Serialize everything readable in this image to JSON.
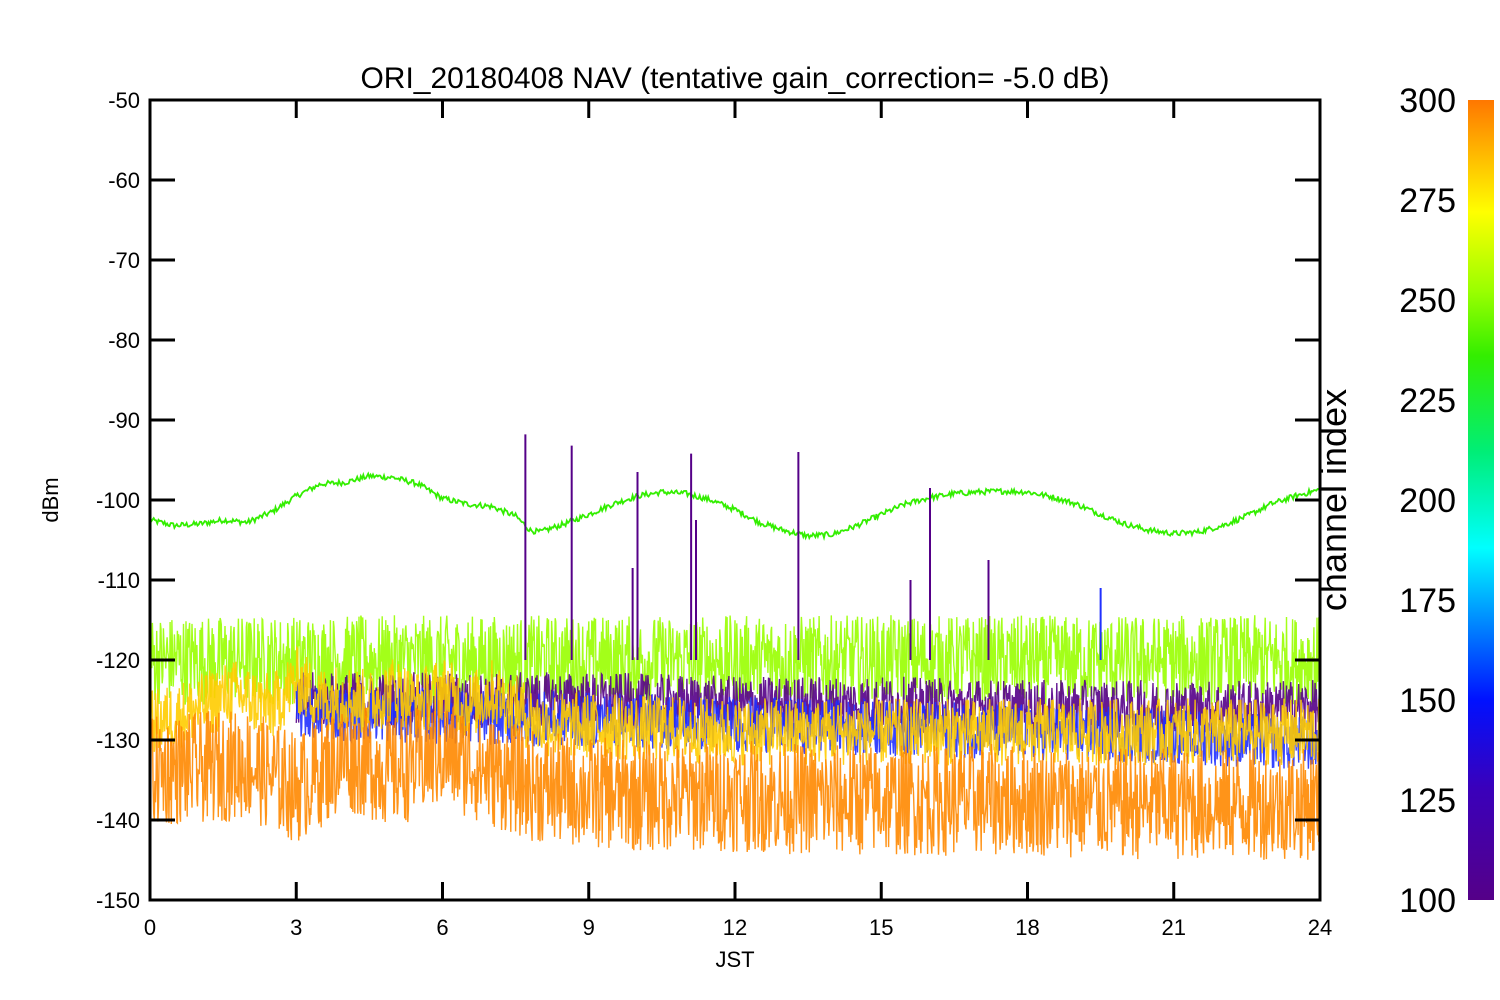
{
  "chart_data": {
    "type": "line",
    "title": "ORI_20180408 NAV (tentative gain_correction= -5.0 dB)",
    "xlabel": "JST",
    "ylabel": "dBm",
    "xlim": [
      0,
      24
    ],
    "ylim": [
      -150,
      -50
    ],
    "x_ticks": [
      0,
      3,
      6,
      9,
      12,
      15,
      18,
      21,
      24
    ],
    "y_ticks": [
      -50,
      -60,
      -70,
      -80,
      -90,
      -100,
      -110,
      -120,
      -130,
      -140,
      -150
    ],
    "colorbar": {
      "label": "channel index",
      "range": [
        100,
        300
      ],
      "ticks": [
        100,
        125,
        150,
        175,
        200,
        225,
        250,
        275,
        300
      ]
    },
    "series": [
      {
        "channel": 220,
        "color": "#33ee00",
        "x": [
          0,
          0.5,
          1,
          1.5,
          2,
          2.5,
          3,
          3.5,
          4,
          4.5,
          5,
          5.5,
          6,
          6.5,
          7,
          7.5,
          7.8,
          8,
          8.5,
          9,
          9.5,
          10,
          10.5,
          11,
          11.5,
          12,
          12.5,
          13,
          13.5,
          14,
          14.5,
          15,
          15.5,
          16,
          16.5,
          17,
          17.5,
          18,
          18.5,
          19,
          19.5,
          20,
          20.5,
          21,
          21.5,
          22,
          22.5,
          23,
          23.5,
          24
        ],
        "y": [
          -102.5,
          -103.2,
          -103,
          -102.5,
          -102.8,
          -101.5,
          -99.5,
          -98,
          -97.8,
          -97,
          -97.2,
          -98,
          -99.8,
          -100.5,
          -100.8,
          -102,
          -103.8,
          -104,
          -103,
          -101.8,
          -100.5,
          -99.5,
          -99,
          -99.2,
          -100,
          -101.2,
          -102.8,
          -103.8,
          -104.5,
          -104.3,
          -103.2,
          -101.8,
          -100.5,
          -99.7,
          -99.2,
          -99,
          -98.9,
          -99,
          -99.6,
          -100.5,
          -101.8,
          -103,
          -103.8,
          -104.2,
          -104,
          -103.2,
          -102,
          -100.5,
          -99.5,
          -98.7
        ]
      },
      {
        "channel": 255,
        "color": "#99ff00",
        "x": [
          0,
          3,
          6,
          9,
          12,
          15,
          18,
          21,
          24
        ],
        "y": [
          -120,
          -120,
          -120,
          -120,
          -120,
          -120,
          -120,
          -120,
          -120
        ],
        "spread_db": 4
      },
      {
        "channel": 110,
        "color": "#550088",
        "x": [
          3,
          6,
          9,
          12,
          15,
          18,
          21,
          24
        ],
        "y": [
          -125,
          -125,
          -125,
          -125.5,
          -125.5,
          -126,
          -126,
          -126
        ],
        "spread_db": 2.5
      },
      {
        "channel": 140,
        "color": "#2030ff",
        "x": [
          3,
          6,
          9,
          12,
          15,
          18,
          21,
          24
        ],
        "y": [
          -126.5,
          -127,
          -127.5,
          -128,
          -128.5,
          -129,
          -129.5,
          -130.5
        ],
        "spread_db": 2.5
      },
      {
        "channel": 280,
        "color": "#ffcc00",
        "x": [
          0,
          1,
          1.7,
          2.5,
          3,
          3.5,
          4,
          4.5,
          5,
          5.5,
          6,
          6.5,
          7,
          7.5,
          8,
          12,
          16,
          20,
          24
        ],
        "y": [
          -128,
          -126,
          -124,
          -126,
          -122.5,
          -125,
          -124.5,
          -125.5,
          -123.5,
          -125.5,
          -123.5,
          -126,
          -124,
          -126,
          -128,
          -129,
          -129,
          -129,
          -129
        ],
        "spread_db": 3
      },
      {
        "channel": 300,
        "color": "#ff8800",
        "x": [
          0,
          2,
          3,
          4,
          5,
          6,
          7,
          8,
          10,
          12,
          14,
          16,
          18,
          20,
          22,
          24
        ],
        "y": [
          -134,
          -133,
          -136,
          -132,
          -134,
          -131.5,
          -134,
          -136,
          -137,
          -137,
          -137.5,
          -137.5,
          -137.5,
          -138,
          -138,
          -138
        ],
        "spread_db": 5
      }
    ],
    "spikes": [
      {
        "x": 7.7,
        "y_top": -91.8,
        "color": "#550088"
      },
      {
        "x": 8.65,
        "y_top": -93.2,
        "color": "#550088"
      },
      {
        "x": 9.9,
        "y_top": -108.5,
        "color": "#550088"
      },
      {
        "x": 10.0,
        "y_top": -96.5,
        "color": "#550088"
      },
      {
        "x": 11.1,
        "y_top": -94.2,
        "color": "#550088"
      },
      {
        "x": 11.2,
        "y_top": -102.5,
        "color": "#550088"
      },
      {
        "x": 13.3,
        "y_top": -94,
        "color": "#550088"
      },
      {
        "x": 15.6,
        "y_top": -110,
        "color": "#550088"
      },
      {
        "x": 16.0,
        "y_top": -98.5,
        "color": "#550088"
      },
      {
        "x": 17.2,
        "y_top": -107.5,
        "color": "#550088"
      },
      {
        "x": 19.5,
        "y_top": -111,
        "color": "#2030ff"
      }
    ]
  }
}
